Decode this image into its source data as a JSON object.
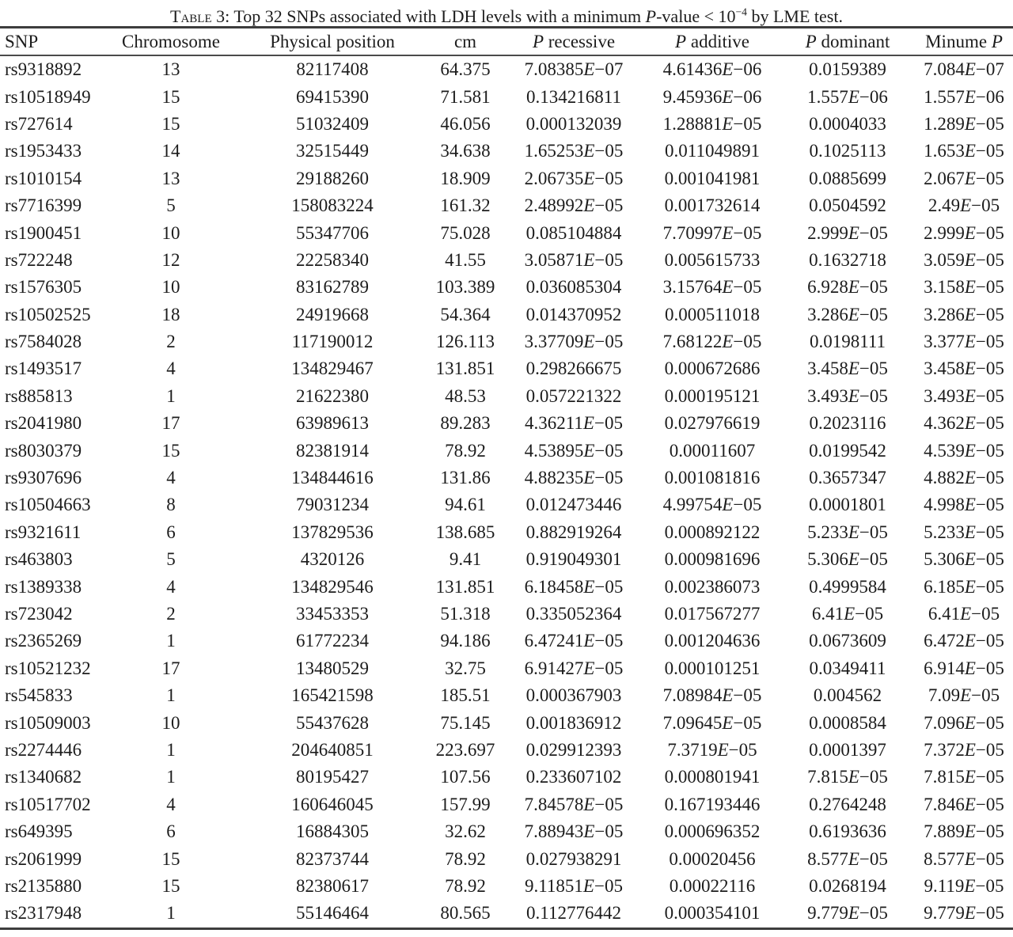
{
  "caption": "~Table~ 3: Top 32 SNPs associated with LDH levels with a minimum *P*-value < 10^{−4} by LME test.",
  "table": {
    "columns": [
      {
        "key": "snp",
        "label": "SNP",
        "align": "left"
      },
      {
        "key": "chromosome",
        "label": "Chromosome",
        "align": "center"
      },
      {
        "key": "physical-position",
        "label": "Physical position",
        "align": "center"
      },
      {
        "key": "cm",
        "label": "cm",
        "align": "center"
      },
      {
        "key": "p-recessive",
        "label": "*P* recessive",
        "align": "center"
      },
      {
        "key": "p-additive",
        "label": "*P* additive",
        "align": "center"
      },
      {
        "key": "p-dominant",
        "label": "*P* dominant",
        "align": "center"
      },
      {
        "key": "minume-p",
        "label": "Minume *P*",
        "align": "center"
      }
    ],
    "rows": [
      [
        "rs9318892",
        "13",
        "82117408",
        "64.375",
        "7.08385E−07",
        "4.61436E−06",
        "0.0159389",
        "7.084E−07"
      ],
      [
        "rs10518949",
        "15",
        "69415390",
        "71.581",
        "0.134216811",
        "9.45936E−06",
        "1.557E−06",
        "1.557E−06"
      ],
      [
        "rs727614",
        "15",
        "51032409",
        "46.056",
        "0.000132039",
        "1.28881E−05",
        "0.0004033",
        "1.289E−05"
      ],
      [
        "rs1953433",
        "14",
        "32515449",
        "34.638",
        "1.65253E−05",
        "0.011049891",
        "0.1025113",
        "1.653E−05"
      ],
      [
        "rs1010154",
        "13",
        "29188260",
        "18.909",
        "2.06735E−05",
        "0.001041981",
        "0.0885699",
        "2.067E−05"
      ],
      [
        "rs7716399",
        "5",
        "158083224",
        "161.32",
        "2.48992E−05",
        "0.001732614",
        "0.0504592",
        "2.49E−05"
      ],
      [
        "rs1900451",
        "10",
        "55347706",
        "75.028",
        "0.085104884",
        "7.70997E−05",
        "2.999E−05",
        "2.999E−05"
      ],
      [
        "rs722248",
        "12",
        "22258340",
        "41.55",
        "3.05871E−05",
        "0.005615733",
        "0.1632718",
        "3.059E−05"
      ],
      [
        "rs1576305",
        "10",
        "83162789",
        "103.389",
        "0.036085304",
        "3.15764E−05",
        "6.928E−05",
        "3.158E−05"
      ],
      [
        "rs10502525",
        "18",
        "24919668",
        "54.364",
        "0.014370952",
        "0.000511018",
        "3.286E−05",
        "3.286E−05"
      ],
      [
        "rs7584028",
        "2",
        "117190012",
        "126.113",
        "3.37709E−05",
        "7.68122E−05",
        "0.0198111",
        "3.377E−05"
      ],
      [
        "rs1493517",
        "4",
        "134829467",
        "131.851",
        "0.298266675",
        "0.000672686",
        "3.458E−05",
        "3.458E−05"
      ],
      [
        "rs885813",
        "1",
        "21622380",
        "48.53",
        "0.057221322",
        "0.000195121",
        "3.493E−05",
        "3.493E−05"
      ],
      [
        "rs2041980",
        "17",
        "63989613",
        "89.283",
        "4.36211E−05",
        "0.027976619",
        "0.2023116",
        "4.362E−05"
      ],
      [
        "rs8030379",
        "15",
        "82381914",
        "78.92",
        "4.53895E−05",
        "0.00011607",
        "0.0199542",
        "4.539E−05"
      ],
      [
        "rs9307696",
        "4",
        "134844616",
        "131.86",
        "4.88235E−05",
        "0.001081816",
        "0.3657347",
        "4.882E−05"
      ],
      [
        "rs10504663",
        "8",
        "79031234",
        "94.61",
        "0.012473446",
        "4.99754E−05",
        "0.0001801",
        "4.998E−05"
      ],
      [
        "rs9321611",
        "6",
        "137829536",
        "138.685",
        "0.882919264",
        "0.000892122",
        "5.233E−05",
        "5.233E−05"
      ],
      [
        "rs463803",
        "5",
        "4320126",
        "9.41",
        "0.919049301",
        "0.000981696",
        "5.306E−05",
        "5.306E−05"
      ],
      [
        "rs1389338",
        "4",
        "134829546",
        "131.851",
        "6.18458E−05",
        "0.002386073",
        "0.4999584",
        "6.185E−05"
      ],
      [
        "rs723042",
        "2",
        "33453353",
        "51.318",
        "0.335052364",
        "0.017567277",
        "6.41E−05",
        "6.41E−05"
      ],
      [
        "rs2365269",
        "1",
        "61772234",
        "94.186",
        "6.47241E−05",
        "0.001204636",
        "0.0673609",
        "6.472E−05"
      ],
      [
        "rs10521232",
        "17",
        "13480529",
        "32.75",
        "6.91427E−05",
        "0.000101251",
        "0.0349411",
        "6.914E−05"
      ],
      [
        "rs545833",
        "1",
        "165421598",
        "185.51",
        "0.000367903",
        "7.08984E−05",
        "0.004562",
        "7.09E−05"
      ],
      [
        "rs10509003",
        "10",
        "55437628",
        "75.145",
        "0.001836912",
        "7.09645E−05",
        "0.0008584",
        "7.096E−05"
      ],
      [
        "rs2274446",
        "1",
        "204640851",
        "223.697",
        "0.029912393",
        "7.3719E−05",
        "0.0001397",
        "7.372E−05"
      ],
      [
        "rs1340682",
        "1",
        "80195427",
        "107.56",
        "0.233607102",
        "0.000801941",
        "7.815E−05",
        "7.815E−05"
      ],
      [
        "rs10517702",
        "4",
        "160646045",
        "157.99",
        "7.84578E−05",
        "0.167193446",
        "0.2764248",
        "7.846E−05"
      ],
      [
        "rs649395",
        "6",
        "16884305",
        "32.62",
        "7.88943E−05",
        "0.000696352",
        "0.6193636",
        "7.889E−05"
      ],
      [
        "rs2061999",
        "15",
        "82373744",
        "78.92",
        "0.027938291",
        "0.00020456",
        "8.577E−05",
        "8.577E−05"
      ],
      [
        "rs2135880",
        "15",
        "82380617",
        "78.92",
        "9.11851E−05",
        "0.00022116",
        "0.0268194",
        "9.119E−05"
      ],
      [
        "rs2317948",
        "1",
        "55146464",
        "80.565",
        "0.112776442",
        "0.000354101",
        "9.779E−05",
        "9.779E−05"
      ]
    ]
  }
}
